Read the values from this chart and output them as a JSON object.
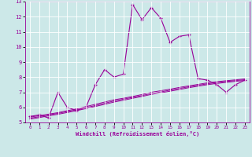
{
  "xlabel": "Windchill (Refroidissement éolien,°C)",
  "x_values": [
    0,
    1,
    2,
    3,
    4,
    5,
    6,
    7,
    8,
    9,
    10,
    11,
    12,
    13,
    14,
    15,
    16,
    17,
    18,
    19,
    20,
    21,
    22,
    23
  ],
  "main_line": [
    5.4,
    5.5,
    5.3,
    7.0,
    6.0,
    5.8,
    6.0,
    7.5,
    8.5,
    8.0,
    8.2,
    12.8,
    11.8,
    12.6,
    11.9,
    10.3,
    10.7,
    10.8,
    7.9,
    7.8,
    7.5,
    7.0,
    7.5,
    7.8
  ],
  "ref_line1": [
    5.35,
    5.45,
    5.55,
    5.65,
    5.78,
    5.9,
    6.05,
    6.2,
    6.35,
    6.5,
    6.6,
    6.72,
    6.85,
    7.0,
    7.1,
    7.2,
    7.32,
    7.42,
    7.52,
    7.62,
    7.7,
    7.76,
    7.82,
    7.88
  ],
  "ref_line2": [
    5.28,
    5.38,
    5.5,
    5.6,
    5.72,
    5.84,
    5.98,
    6.12,
    6.27,
    6.42,
    6.54,
    6.66,
    6.78,
    6.92,
    7.02,
    7.14,
    7.25,
    7.36,
    7.46,
    7.56,
    7.64,
    7.71,
    7.77,
    7.83
  ],
  "ref_line3": [
    5.22,
    5.32,
    5.44,
    5.54,
    5.66,
    5.78,
    5.92,
    6.06,
    6.2,
    6.35,
    6.47,
    6.6,
    6.72,
    6.86,
    6.96,
    7.07,
    7.18,
    7.3,
    7.4,
    7.5,
    7.58,
    7.65,
    7.72,
    7.78
  ],
  "line_color": "#990099",
  "bg_color": "#cce8e8",
  "grid_color": "#ffffff",
  "ylim": [
    5.0,
    13.0
  ],
  "xlim": [
    -0.5,
    23.5
  ],
  "yticks": [
    5,
    6,
    7,
    8,
    9,
    10,
    11,
    12,
    13
  ],
  "xticks": [
    0,
    1,
    2,
    3,
    4,
    5,
    6,
    7,
    8,
    9,
    10,
    11,
    12,
    13,
    14,
    15,
    16,
    17,
    18,
    19,
    20,
    21,
    22,
    23
  ]
}
